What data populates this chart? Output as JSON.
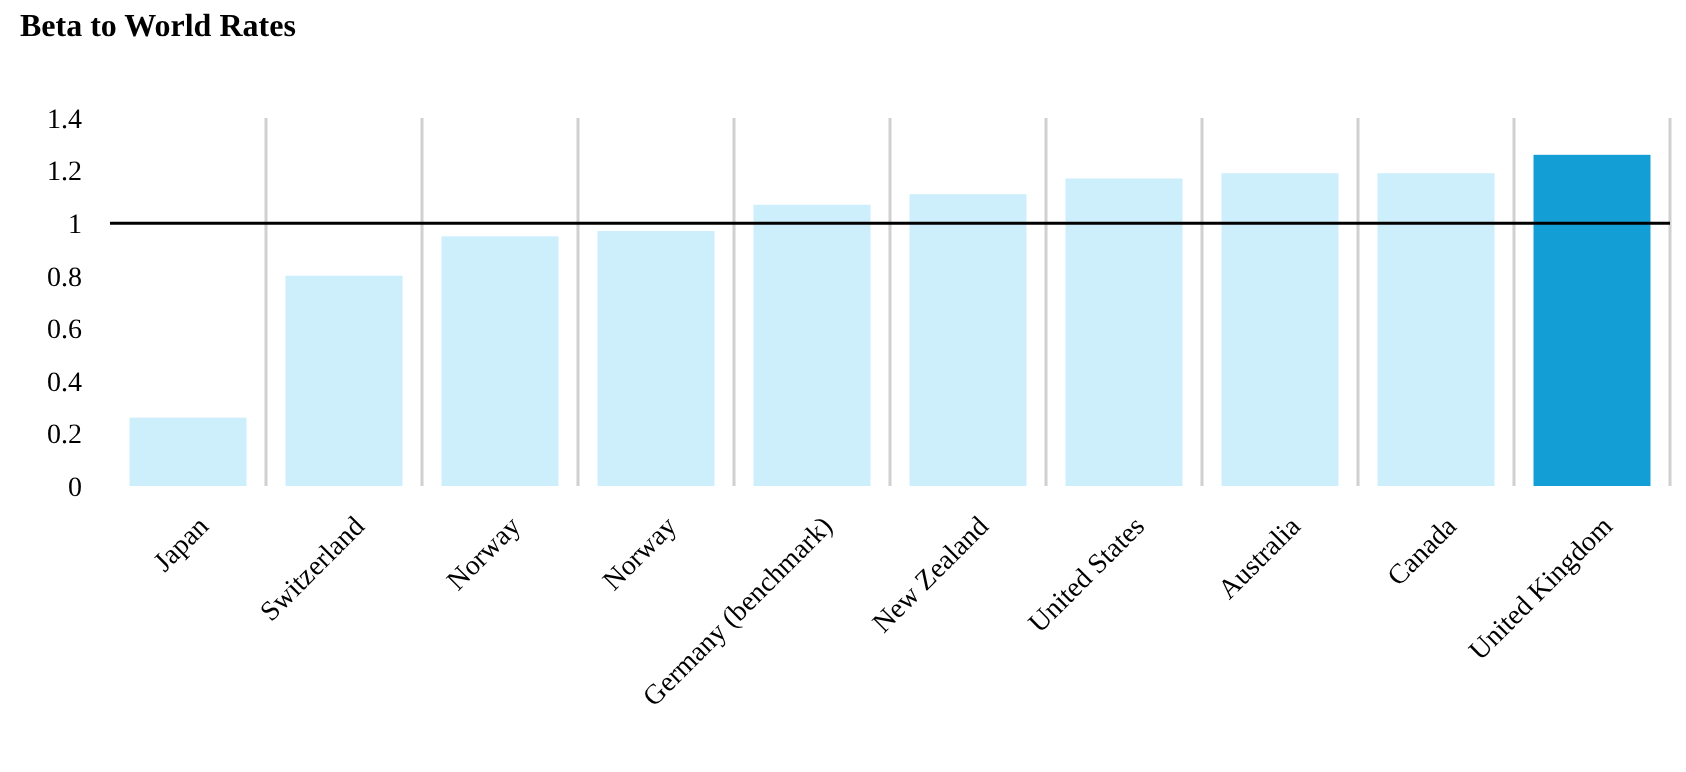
{
  "chart_data": {
    "type": "bar",
    "title": "Beta to World Rates",
    "categories": [
      "Japan",
      "Switzerland",
      "Norway",
      "Norway",
      "Germany (benchmark)",
      "New Zealand",
      "United States",
      "Australia",
      "Canada",
      "United Kingdom"
    ],
    "values": [
      0.26,
      0.8,
      0.95,
      0.97,
      1.07,
      1.11,
      1.17,
      1.19,
      1.19,
      1.26
    ],
    "colors": [
      "#cdeefb",
      "#cdeefb",
      "#cdeefb",
      "#cdeefb",
      "#cdeefb",
      "#cdeefb",
      "#cdeefb",
      "#cdeefb",
      "#cdeefb",
      "#139fd6"
    ],
    "ylim": [
      0,
      1.4
    ],
    "yticks": [
      0,
      0.2,
      0.4,
      0.6,
      0.8,
      1,
      1.2,
      1.4
    ],
    "grid": "x",
    "ref_lines": [
      {
        "axis": "y",
        "value": 1,
        "color": "#000000"
      }
    ]
  }
}
